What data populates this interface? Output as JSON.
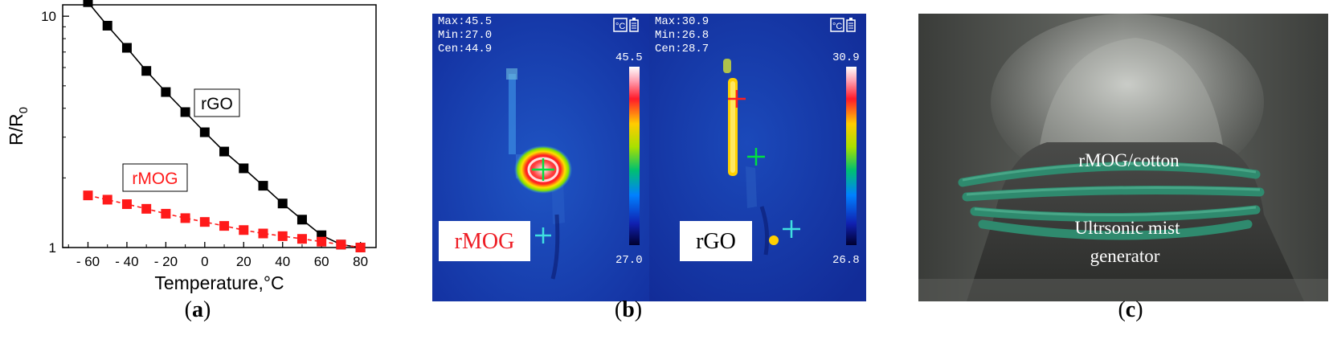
{
  "panel_a": {
    "caption_open": "(",
    "caption_letter": "a",
    "caption_close": ")"
  },
  "panel_b": {
    "caption_open": "(",
    "caption_letter": "b",
    "caption_close": ")",
    "left_image": {
      "readout_max": "Max:45.5",
      "readout_min": "Min:27.0",
      "readout_cen": "Cen:44.9",
      "scale_top": "45.5",
      "scale_bottom": "27.0",
      "label": "rMOG"
    },
    "right_image": {
      "readout_max": "Max:30.9",
      "readout_min": "Min:26.8",
      "readout_cen": "Cen:28.7",
      "scale_top": "30.9",
      "scale_bottom": "26.8",
      "label": "rGO"
    }
  },
  "panel_c": {
    "caption_open": "(",
    "caption_letter": "c",
    "caption_close": ")",
    "label_top": "rMOG/cotton",
    "label_mid": "Ultrsonic mist",
    "label_bottom": "generator"
  },
  "colors": {
    "rgo_series": "#000000",
    "rmog_series": "#ff1a1a",
    "thermal_bg": "#1537a8"
  },
  "chart_data": {
    "type": "scatter",
    "xlabel": "Temperature,°C",
    "ylabel": "R/R",
    "ylabel_sub": "0",
    "yscale": "log",
    "xlim": [
      -73,
      88
    ],
    "ylim": [
      1,
      11.2
    ],
    "xticks": [
      -60,
      -40,
      -20,
      0,
      20,
      40,
      60,
      80
    ],
    "xtick_labels": [
      "- 60",
      "- 40",
      "- 20",
      "0",
      "20",
      "40",
      "60",
      "80"
    ],
    "yticks": [
      1,
      10
    ],
    "ytick_labels": [
      "1",
      "10"
    ],
    "series": [
      {
        "name": "rGO",
        "color": "#000000",
        "x": [
          -60,
          -50,
          -40,
          -30,
          -20,
          -10,
          0,
          10,
          20,
          30,
          40,
          50,
          60,
          70,
          80
        ],
        "y": [
          11.5,
          9.1,
          7.3,
          5.8,
          4.7,
          3.85,
          3.15,
          2.6,
          2.2,
          1.85,
          1.55,
          1.32,
          1.13,
          1.03,
          1.0
        ]
      },
      {
        "name": "rMOG",
        "color": "#ff1a1a",
        "x": [
          -60,
          -50,
          -40,
          -30,
          -20,
          -10,
          0,
          10,
          20,
          30,
          40,
          50,
          60,
          70,
          80
        ],
        "y": [
          1.68,
          1.61,
          1.54,
          1.47,
          1.4,
          1.34,
          1.29,
          1.24,
          1.19,
          1.15,
          1.12,
          1.09,
          1.06,
          1.03,
          1.0
        ]
      }
    ]
  }
}
